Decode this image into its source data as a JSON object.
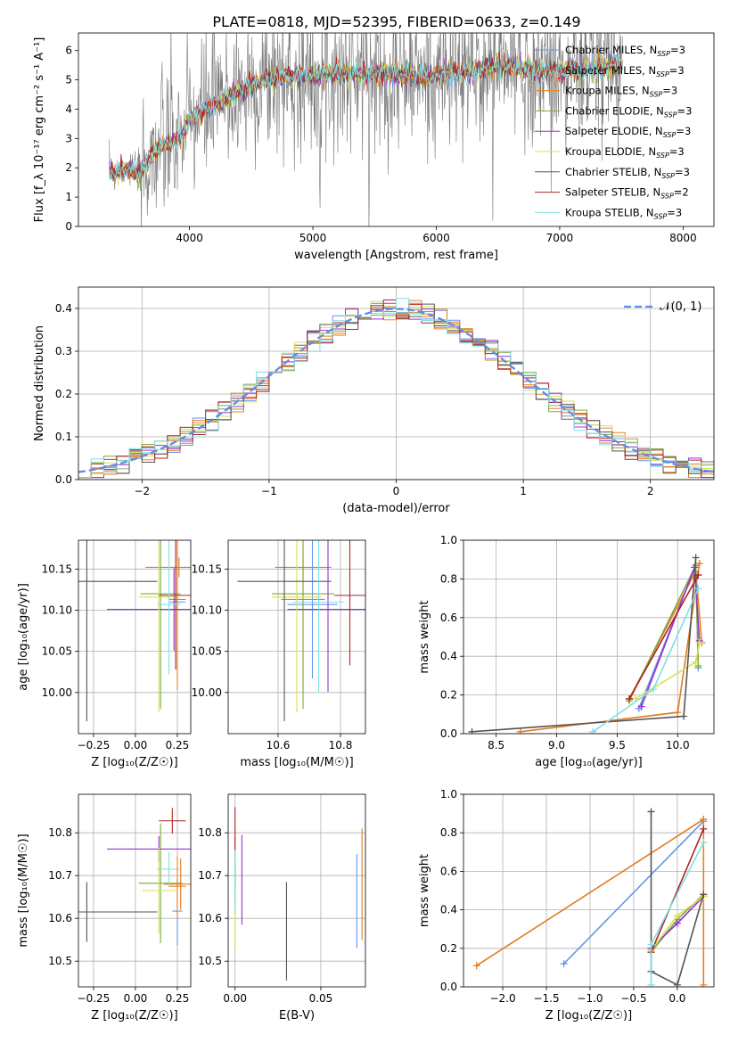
{
  "figure": {
    "title": "PLATE=0818, MJD=52395, FIBERID=0633, z=0.149"
  },
  "models": [
    {
      "name": "Chabrier MILES",
      "nssp": "3",
      "color": "#6495ed"
    },
    {
      "name": "Salpeter MILES",
      "nssp": "3",
      "color": "#e07b1e"
    },
    {
      "name": "Kroupa MILES",
      "nssp": "3",
      "color": "#e8831c"
    },
    {
      "name": "Chabrier ELODIE",
      "nssp": "3",
      "color": "#7daa3a"
    },
    {
      "name": "Salpeter ELODIE",
      "nssp": "3",
      "color": "#9932cc"
    },
    {
      "name": "Kroupa ELODIE",
      "nssp": "3",
      "color": "#d4e157"
    },
    {
      "name": "Chabrier STELIB",
      "nssp": "3",
      "color": "#555555"
    },
    {
      "name": "Salpeter STELIB",
      "nssp": "2",
      "color": "#b22222"
    },
    {
      "name": "Kroupa STELIB",
      "nssp": "3",
      "color": "#80dfe6"
    }
  ],
  "chart_data": [
    {
      "id": "spectrum",
      "type": "line",
      "xlabel": "wavelength [Angstrom, rest frame]",
      "ylabel": "Flux [f_λ 10⁻¹⁷ erg cm⁻² s⁻¹ A⁻¹]",
      "xlim": [
        3100,
        8250
      ],
      "ylim": [
        0,
        6.6
      ],
      "xticks": [
        4000,
        5000,
        6000,
        7000,
        8000
      ],
      "yticks": [
        0,
        1,
        2,
        3,
        4,
        5,
        6
      ],
      "grid": false,
      "legend": "right",
      "continuum": {
        "x": [
          3350,
          3500,
          3600,
          3700,
          3800,
          3900,
          4000,
          4100,
          4300,
          4500,
          4700,
          4900,
          5100,
          5300,
          5500,
          5700,
          5900,
          6100,
          6300,
          6500,
          6700,
          6900,
          7100,
          7300,
          7500
        ],
        "y": [
          1.8,
          2.0,
          1.8,
          2.5,
          2.8,
          2.9,
          3.6,
          3.9,
          4.4,
          4.8,
          5.1,
          5.1,
          5.2,
          5.2,
          5.2,
          5.2,
          5.1,
          5.2,
          5.3,
          5.5,
          5.4,
          5.3,
          5.3,
          5.4,
          5.5
        ]
      },
      "observed_noise": 1.3
    },
    {
      "id": "residuals",
      "type": "histogram",
      "xlabel": "(data-model)/error",
      "ylabel": "Normed distribution",
      "xlim": [
        -2.5,
        2.5
      ],
      "ylim": [
        0,
        0.45
      ],
      "xticks": [
        -2,
        -1,
        0,
        1,
        2
      ],
      "yticks": [
        0.0,
        0.1,
        0.2,
        0.3,
        0.4
      ],
      "grid": true,
      "legend": "top-right",
      "legend_label": "𝒩(0, 1)",
      "bin_width": 0.1
    },
    {
      "id": "age-vs-Z",
      "type": "errorbar",
      "xlabel": "Z [log₁₀(Z/Z☉)]",
      "ylabel": "age  [log₁₀(age/yr)]",
      "xlim": [
        -0.34,
        0.33
      ],
      "ylim": [
        9.95,
        10.185
      ],
      "xticks": [
        -0.25,
        0.0,
        0.25
      ],
      "yticks": [
        10.0,
        10.05,
        10.1,
        10.15
      ],
      "grid": true,
      "points": [
        {
          "x": 0.25,
          "y": 10.11,
          "xerr": 0.05,
          "yerr": 0.09
        },
        {
          "x": 0.26,
          "y": 10.152,
          "xerr": 0.2,
          "yerr": 0.012
        },
        {
          "x": 0.25,
          "y": 10.113,
          "xerr": 0.05,
          "yerr": 0.11
        },
        {
          "x": 0.15,
          "y": 10.12,
          "xerr": 0.12,
          "yerr": 0.14
        },
        {
          "x": 0.23,
          "y": 10.101,
          "xerr": 0.4,
          "yerr": 0.05
        },
        {
          "x": 0.14,
          "y": 10.116,
          "xerr": 0.12,
          "yerr": 0.14
        },
        {
          "x": -0.29,
          "y": 10.135,
          "xerr": 0.42,
          "yerr": 0.17
        },
        {
          "x": 0.24,
          "y": 10.118,
          "xerr": 0.1,
          "yerr": 0.09
        },
        {
          "x": 0.2,
          "y": 10.107,
          "xerr": 0.07,
          "yerr": 0.085
        }
      ]
    },
    {
      "id": "age-vs-mass",
      "type": "errorbar",
      "xlabel": "mass [log₁₀(M/M☉)]",
      "ylabel": "",
      "xlim": [
        10.44,
        10.88
      ],
      "ylim": [
        9.95,
        10.185
      ],
      "xticks": [
        10.6,
        10.8
      ],
      "yticks": [
        10.0,
        10.05,
        10.1,
        10.15
      ],
      "grid": true,
      "points": [
        {
          "x": 10.71,
          "y": 10.107,
          "xerr": 0.08,
          "yerr": 0.09
        },
        {
          "x": 10.68,
          "y": 10.152,
          "xerr": 0.09,
          "yerr": 0.012
        },
        {
          "x": 10.68,
          "y": 10.113,
          "xerr": 0.07,
          "yerr": 0.11
        },
        {
          "x": 10.68,
          "y": 10.12,
          "xerr": 0.1,
          "yerr": 0.14
        },
        {
          "x": 10.76,
          "y": 10.101,
          "xerr": 0.13,
          "yerr": 0.1
        },
        {
          "x": 10.66,
          "y": 10.116,
          "xerr": 0.08,
          "yerr": 0.14
        },
        {
          "x": 10.62,
          "y": 10.135,
          "xerr": 0.15,
          "yerr": 0.17
        },
        {
          "x": 10.83,
          "y": 10.118,
          "xerr": 0.05,
          "yerr": 0.085
        },
        {
          "x": 10.73,
          "y": 10.11,
          "xerr": 0.08,
          "yerr": 0.11
        }
      ]
    },
    {
      "id": "weights-vs-age",
      "type": "line",
      "xlabel": "age  [log₁₀(age/yr)]",
      "ylabel": "mass weight",
      "xlim": [
        8.23,
        10.3
      ],
      "ylim": [
        0,
        1
      ],
      "xticks": [
        8.5,
        9.0,
        9.5,
        10.0
      ],
      "yticks": [
        0.0,
        0.2,
        0.4,
        0.6,
        0.8,
        1.0
      ],
      "grid": true,
      "series": [
        {
          "x": [
            9.68,
            10.15,
            10.17
          ],
          "y": [
            0.13,
            0.87,
            0.34
          ]
        },
        {
          "x": [
            8.7,
            10.0,
            10.18
          ],
          "y": [
            0.01,
            0.11,
            0.88
          ]
        },
        {
          "x": [
            9.6,
            10.15,
            10.2
          ],
          "y": [
            0.18,
            0.84,
            0.47
          ]
        },
        {
          "x": [
            9.6,
            10.15,
            10.17
          ],
          "y": [
            0.17,
            0.87,
            0.35
          ]
        },
        {
          "x": [
            9.7,
            10.14,
            10.18
          ],
          "y": [
            0.14,
            0.86,
            0.48
          ]
        },
        {
          "x": [
            9.65,
            10.15,
            10.18
          ],
          "y": [
            0.18,
            0.37,
            0.47
          ]
        },
        {
          "x": [
            8.3,
            10.05,
            10.15
          ],
          "y": [
            0.01,
            0.09,
            0.91
          ]
        },
        {
          "x": [
            9.6,
            10.17
          ],
          "y": [
            0.18,
            0.82
          ]
        },
        {
          "x": [
            9.3,
            9.8,
            10.17
          ],
          "y": [
            0.01,
            0.23,
            0.75
          ]
        }
      ]
    },
    {
      "id": "mass-vs-Z",
      "type": "errorbar",
      "xlabel": "Z [log₁₀(Z/Z☉)]",
      "ylabel": "mass [log₁₀(M/M☉)]",
      "xlim": [
        -0.34,
        0.33
      ],
      "ylim": [
        10.44,
        10.89
      ],
      "xticks": [
        -0.25,
        0.0,
        0.25
      ],
      "yticks": [
        10.5,
        10.6,
        10.7,
        10.8
      ],
      "grid": true,
      "points": [
        {
          "x": 0.25,
          "y": 10.617,
          "xerr": 0.03,
          "yerr": 0.08
        },
        {
          "x": 0.27,
          "y": 10.68,
          "xerr": 0.1,
          "yerr": 0.06
        },
        {
          "x": 0.25,
          "y": 10.675,
          "xerr": 0.05,
          "yerr": 0.07
        },
        {
          "x": 0.15,
          "y": 10.682,
          "xerr": 0.13,
          "yerr": 0.14
        },
        {
          "x": 0.14,
          "y": 10.762,
          "xerr": 0.31,
          "yerr": 0.03
        },
        {
          "x": 0.14,
          "y": 10.665,
          "xerr": 0.1,
          "yerr": 0.1
        },
        {
          "x": -0.29,
          "y": 10.615,
          "xerr": 0.42,
          "yerr": 0.07
        },
        {
          "x": 0.22,
          "y": 10.828,
          "xerr": 0.08,
          "yerr": 0.03
        },
        {
          "x": 0.2,
          "y": 10.715,
          "xerr": 0.07,
          "yerr": 0.04
        }
      ]
    },
    {
      "id": "mass-vs-ebv",
      "type": "errorbar",
      "xlabel": "E(B-V)",
      "ylabel": "",
      "xlim": [
        -0.004,
        0.076
      ],
      "ylim": [
        10.44,
        10.89
      ],
      "xticks": [
        0.0,
        0.05
      ],
      "yticks": [
        10.5,
        10.6,
        10.7,
        10.8
      ],
      "grid": true,
      "points": [
        {
          "x": 0.071,
          "y": 10.64,
          "xerr": 0,
          "yerr": 0.11
        },
        {
          "x": 0.074,
          "y": 10.68,
          "xerr": 0,
          "yerr": 0.13
        },
        {
          "x": 0.0,
          "y": 10.73,
          "xerr": 0,
          "yerr": 0.06
        },
        {
          "x": 0.0,
          "y": 10.67,
          "xerr": 0,
          "yerr": 0.06
        },
        {
          "x": 0.004,
          "y": 10.69,
          "xerr": 0,
          "yerr": 0.105
        },
        {
          "x": 0.0,
          "y": 10.58,
          "xerr": 0,
          "yerr": 0.05
        },
        {
          "x": 0.03,
          "y": 10.57,
          "xerr": 0,
          "yerr": 0.115
        },
        {
          "x": 0.0,
          "y": 10.81,
          "xerr": 0,
          "yerr": 0.05
        },
        {
          "x": 0.0,
          "y": 10.69,
          "xerr": 0,
          "yerr": 0.07
        }
      ]
    },
    {
      "id": "weights-vs-Z",
      "type": "line",
      "xlabel": "Z [log₁₀(Z/Z☉)]",
      "ylabel": "mass weight",
      "xlim": [
        -2.45,
        0.42
      ],
      "ylim": [
        0,
        1
      ],
      "xticks": [
        -2.0,
        -1.5,
        -1.0,
        -0.5,
        0.0
      ],
      "yticks": [
        0.0,
        0.2,
        0.4,
        0.6,
        0.8,
        1.0
      ],
      "grid": true,
      "series": [
        {
          "x": [
            -1.3,
            0.3
          ],
          "y": [
            0.12,
            0.86
          ]
        },
        {
          "x": [
            -2.3,
            0.3
          ],
          "y": [
            0.11,
            0.87
          ]
        },
        {
          "x": [
            0.3,
            0.3
          ],
          "y": [
            0.01,
            0.87
          ]
        },
        {
          "x": [
            -0.3,
            0.0,
            0.3
          ],
          "y": [
            0.18,
            0.35,
            0.48
          ]
        },
        {
          "x": [
            -0.3,
            0.0,
            0.3
          ],
          "y": [
            0.2,
            0.33,
            0.47
          ]
        },
        {
          "x": [
            -0.3,
            0.0,
            0.3
          ],
          "y": [
            0.19,
            0.37,
            0.47
          ]
        },
        {
          "x": [
            -0.3,
            -0.3,
            0.0,
            0.3
          ],
          "y": [
            0.91,
            0.08,
            0.01,
            0.48
          ]
        },
        {
          "x": [
            -0.3,
            0.3
          ],
          "y": [
            0.18,
            0.82
          ]
        },
        {
          "x": [
            -0.3,
            -0.3,
            0.3
          ],
          "y": [
            0.01,
            0.22,
            0.75
          ]
        }
      ]
    }
  ]
}
